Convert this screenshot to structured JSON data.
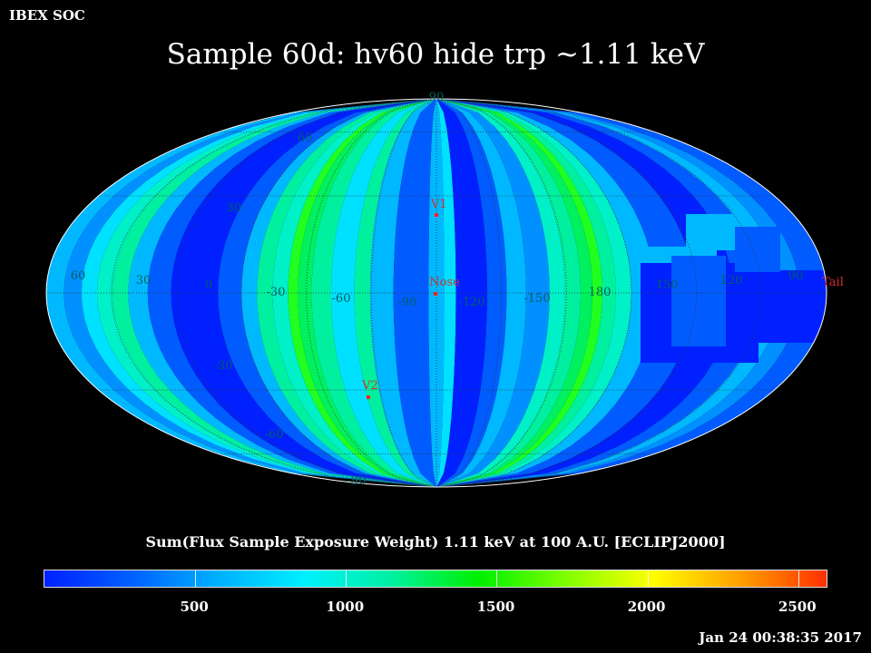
{
  "header": {
    "corner_label": "IBEX SOC",
    "title": "Sample 60d: hv60 hide trp ~1.11 keV"
  },
  "map": {
    "projection": "aitoff",
    "colors": {
      "blue_dark": "#0020ff",
      "blue": "#005cff",
      "blue_mid": "#0090ff",
      "sky": "#00b8ff",
      "cyan": "#00e0ff",
      "teal": "#00f0c8",
      "aqua_green": "#00f0a0",
      "green": "#00f060",
      "bright_green": "#20ff20",
      "grid": "#333333",
      "grid_label": "#006060",
      "marker": "#ff2020",
      "marker_label": "#d03030"
    },
    "lon_labels": [
      "60",
      "30",
      "0",
      "-30",
      "-60",
      "-90",
      "-120",
      "-150",
      "180",
      "150",
      "120",
      "90"
    ],
    "lat_labels": [
      "90",
      "60",
      "30",
      "-30",
      "-60",
      "-90"
    ],
    "markers": [
      {
        "label": "V1"
      },
      {
        "label": "Nose"
      },
      {
        "label": "V2"
      },
      {
        "label": "Tail"
      }
    ]
  },
  "colorbar": {
    "title": "Sum(Flux Sample Exposure Weight)  1.11 keV at 100 A.U. [ECLIPJ2000]",
    "range": [
      0,
      2600
    ],
    "ticks": [
      "500",
      "1000",
      "1500",
      "2000",
      "2500"
    ],
    "gradient": [
      "#0020ff",
      "#0060ff",
      "#00b0ff",
      "#00f0ff",
      "#00f0a0",
      "#00f000",
      "#80ff00",
      "#ffff00",
      "#ffa000",
      "#ff3000"
    ]
  },
  "footer": {
    "timestamp": "Jan 24 00:38:35 2017"
  }
}
